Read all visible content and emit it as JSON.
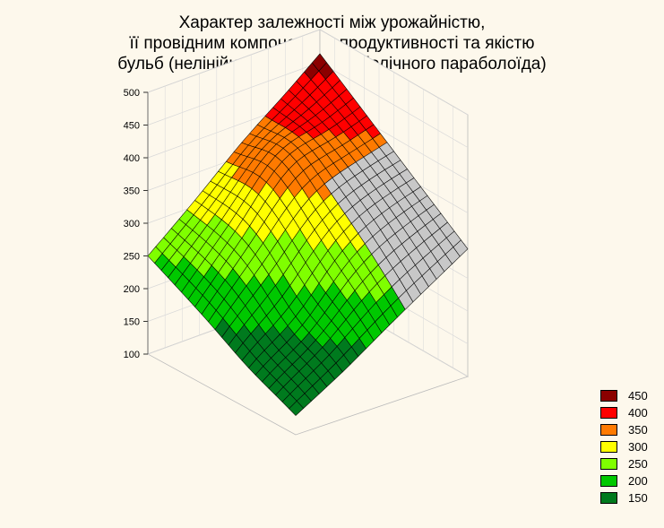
{
  "title_lines": [
    "Характер залежності між урожайністю,",
    "її провідним компонентом продуктивності та якістю",
    "бульб (нелінійна система гіперболічного параболоїда)"
  ],
  "colors": {
    "background": "#fdf8ec",
    "mesh": "#000000"
  },
  "chart_data": {
    "type": "surface3d",
    "title": "Характер залежності між урожайністю, її провідним компонентом продуктивності та якістю бульб (нелінійна система гіперболічного параболоїда)",
    "z_axis": {
      "label": "",
      "ticks": [
        "100",
        "150",
        "200",
        "250",
        "300",
        "350",
        "400",
        "450",
        "500"
      ],
      "range": [
        100,
        500
      ]
    },
    "surface_peaks": [
      {
        "location": "far corner",
        "z": 470
      },
      {
        "location": "right corner",
        "z": 295
      },
      {
        "location": "left corner",
        "z": 250
      },
      {
        "location": "front corner",
        "z": 130
      }
    ],
    "legend": [
      {
        "label": "450",
        "color": "#8b0000"
      },
      {
        "label": "400",
        "color": "#ff0000"
      },
      {
        "label": "350",
        "color": "#ff7a00"
      },
      {
        "label": "300",
        "color": "#ffff00"
      },
      {
        "label": "250",
        "color": "#7fff00"
      },
      {
        "label": "200",
        "color": "#00c800"
      },
      {
        "label": "150",
        "color": "#007a1e"
      }
    ]
  }
}
